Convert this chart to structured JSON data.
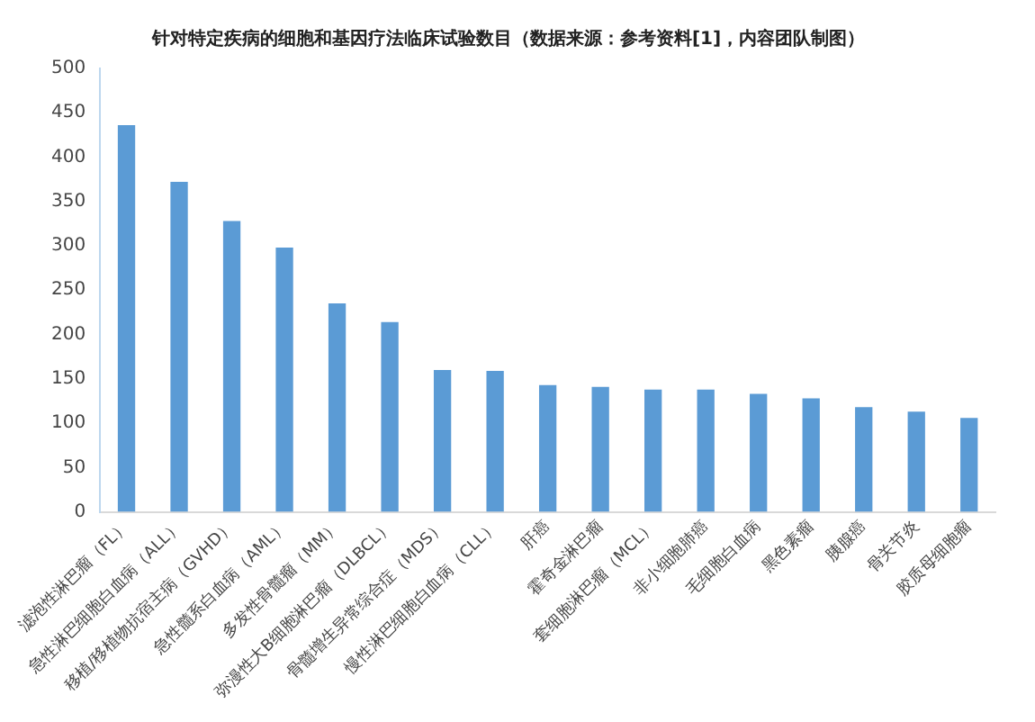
{
  "chart_data": {
    "type": "bar",
    "title": "针对特定疾病的细胞和基因疗法临床试验数目（数据来源：参考资料[1]，内容团队制图）",
    "categories": [
      "滤泡性淋巴瘤（FL）",
      "急性淋巴细胞白血病（ALL）",
      "移植/移植物抗宿主病（GVHD）",
      "急性髓系白血病（AML）",
      "多发性骨髓瘤（MM）",
      "弥漫性大B细胞淋巴瘤（DLBCL）",
      "骨髓增生异常综合症（MDS）",
      "慢性淋巴细胞白血病（CLL）",
      "肝癌",
      "霍奇金淋巴瘤",
      "套细胞淋巴瘤（MCL）",
      "非小细胞肺癌",
      "毛细胞白血病",
      "黑色素瘤",
      "胰腺癌",
      "骨关节炎",
      "胶质母细胞瘤"
    ],
    "values": [
      436,
      372,
      328,
      298,
      235,
      214,
      160,
      159,
      143,
      141,
      138,
      138,
      133,
      128,
      118,
      113,
      106
    ],
    "color": "#5b9bd5",
    "ylim": [
      0,
      500
    ],
    "yticks": [
      0,
      50,
      100,
      150,
      200,
      250,
      300,
      350,
      400,
      450,
      500
    ],
    "grid": false,
    "legend": false
  }
}
